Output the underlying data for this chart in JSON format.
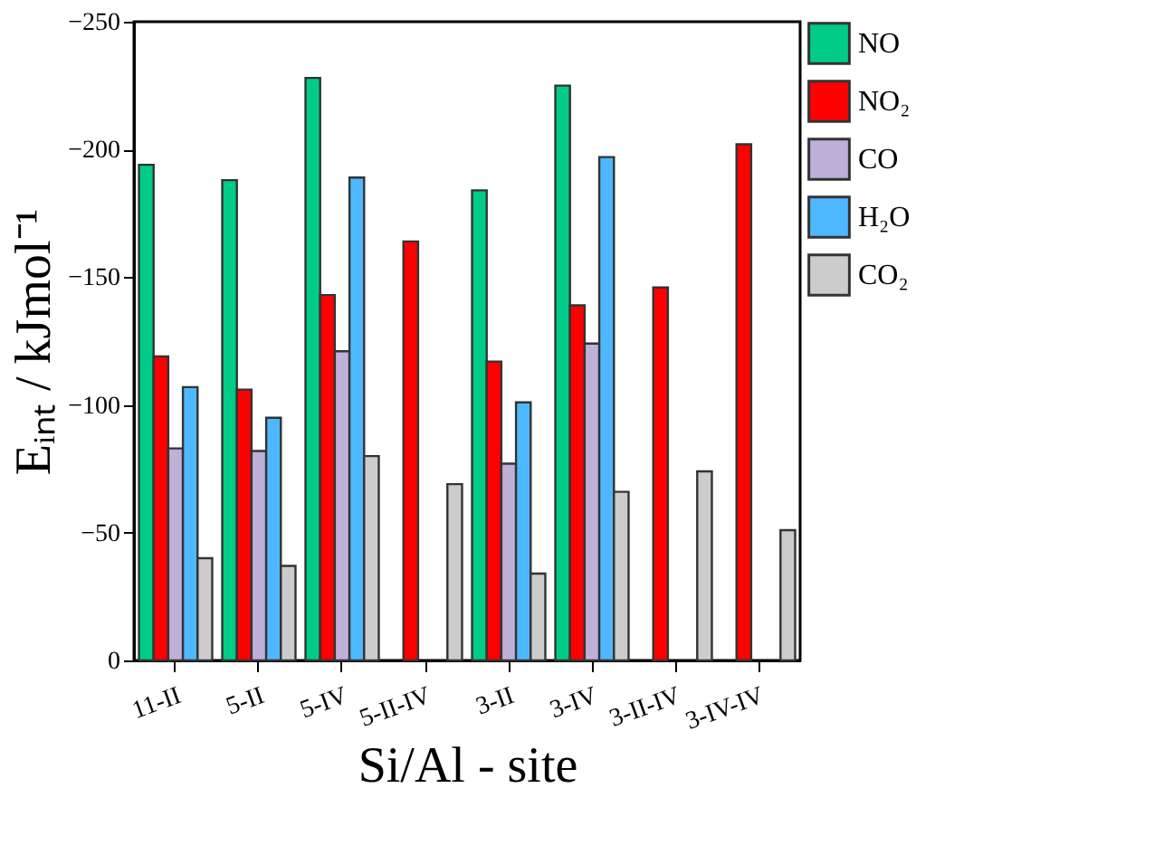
{
  "chart_data": {
    "type": "bar",
    "xlabel": "Si/Al - site",
    "ylabel": "Eᵢₙₜ / kJmol⁻¹",
    "categories": [
      "11-II",
      "5-II",
      "5-IV",
      "5-II-IV",
      "3-II",
      "3-IV",
      "3-II-IV",
      "3-IV-IV"
    ],
    "series": [
      {
        "name": "NO",
        "color": "#00cc88",
        "values": [
          -194,
          -188,
          -228,
          null,
          -184,
          -225,
          null,
          null
        ]
      },
      {
        "name": "NO₂",
        "color": "#ff0000",
        "values": [
          -119,
          -106,
          -143,
          -164,
          -117,
          -139,
          -146,
          -202
        ]
      },
      {
        "name": "CO",
        "color": "#bfb0d8",
        "values": [
          -83,
          -82,
          -121,
          null,
          -77,
          -124,
          null,
          null
        ]
      },
      {
        "name": "H₂O",
        "color": "#4db8ff",
        "values": [
          -107,
          -95,
          -189,
          null,
          -101,
          -197,
          null,
          null
        ]
      },
      {
        "name": "CO₂",
        "color": "#cccccc",
        "values": [
          -40,
          -37,
          -80,
          -69,
          -34,
          -66,
          -74,
          -51
        ]
      }
    ],
    "ylim": [
      0,
      -250
    ],
    "yticks": [
      0,
      -50,
      -100,
      -150,
      -200,
      -250
    ],
    "grid": false,
    "legend": "top right"
  }
}
